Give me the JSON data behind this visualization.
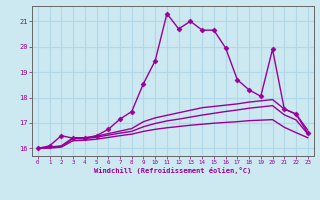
{
  "xlabel": "Windchill (Refroidissement éolien,°C)",
  "background_color": "#cce8f0",
  "grid_color": "#b0d8e8",
  "line_color": "#990099",
  "spine_color": "#666666",
  "xlim": [
    -0.5,
    23.5
  ],
  "ylim": [
    15.7,
    21.6
  ],
  "yticks": [
    16,
    17,
    18,
    19,
    20,
    21
  ],
  "xticks": [
    0,
    1,
    2,
    3,
    4,
    5,
    6,
    7,
    8,
    9,
    10,
    11,
    12,
    13,
    14,
    15,
    16,
    17,
    18,
    19,
    20,
    21,
    22,
    23
  ],
  "series": [
    {
      "x": [
        0,
        1,
        2,
        3,
        4,
        5,
        6,
        7,
        8,
        9,
        10,
        11,
        12,
        13,
        14,
        15,
        16,
        17,
        18,
        19,
        20,
        21,
        22,
        23
      ],
      "y": [
        16.0,
        16.1,
        16.5,
        16.4,
        16.4,
        16.5,
        16.75,
        17.15,
        17.45,
        18.55,
        19.45,
        21.3,
        20.7,
        21.0,
        20.65,
        20.65,
        19.95,
        18.7,
        18.3,
        18.05,
        19.9,
        17.55,
        17.35,
        16.6
      ],
      "marker": "D",
      "markersize": 2.5,
      "linewidth": 1.0
    },
    {
      "x": [
        0,
        1,
        2,
        3,
        4,
        5,
        6,
        7,
        8,
        9,
        10,
        11,
        12,
        13,
        14,
        15,
        16,
        17,
        18,
        19,
        20,
        21,
        22,
        23
      ],
      "y": [
        16.0,
        16.05,
        16.1,
        16.42,
        16.42,
        16.48,
        16.58,
        16.68,
        16.78,
        17.05,
        17.2,
        17.3,
        17.4,
        17.5,
        17.6,
        17.65,
        17.7,
        17.75,
        17.82,
        17.87,
        17.92,
        17.55,
        17.35,
        16.72
      ],
      "marker": null,
      "markersize": 0,
      "linewidth": 1.0
    },
    {
      "x": [
        0,
        1,
        2,
        3,
        4,
        5,
        6,
        7,
        8,
        9,
        10,
        11,
        12,
        13,
        14,
        15,
        16,
        17,
        18,
        19,
        20,
        21,
        22,
        23
      ],
      "y": [
        16.0,
        16.03,
        16.08,
        16.38,
        16.38,
        16.44,
        16.52,
        16.6,
        16.67,
        16.85,
        16.98,
        17.08,
        17.15,
        17.23,
        17.31,
        17.38,
        17.45,
        17.51,
        17.58,
        17.63,
        17.68,
        17.32,
        17.12,
        16.57
      ],
      "marker": null,
      "markersize": 0,
      "linewidth": 1.0
    },
    {
      "x": [
        0,
        1,
        2,
        3,
        4,
        5,
        6,
        7,
        8,
        9,
        10,
        11,
        12,
        13,
        14,
        15,
        16,
        17,
        18,
        19,
        20,
        21,
        22,
        23
      ],
      "y": [
        16.0,
        16.01,
        16.05,
        16.3,
        16.32,
        16.36,
        16.43,
        16.5,
        16.56,
        16.67,
        16.75,
        16.81,
        16.86,
        16.91,
        16.95,
        16.99,
        17.02,
        17.05,
        17.09,
        17.11,
        17.13,
        16.83,
        16.62,
        16.42
      ],
      "marker": null,
      "markersize": 0,
      "linewidth": 1.0
    }
  ]
}
